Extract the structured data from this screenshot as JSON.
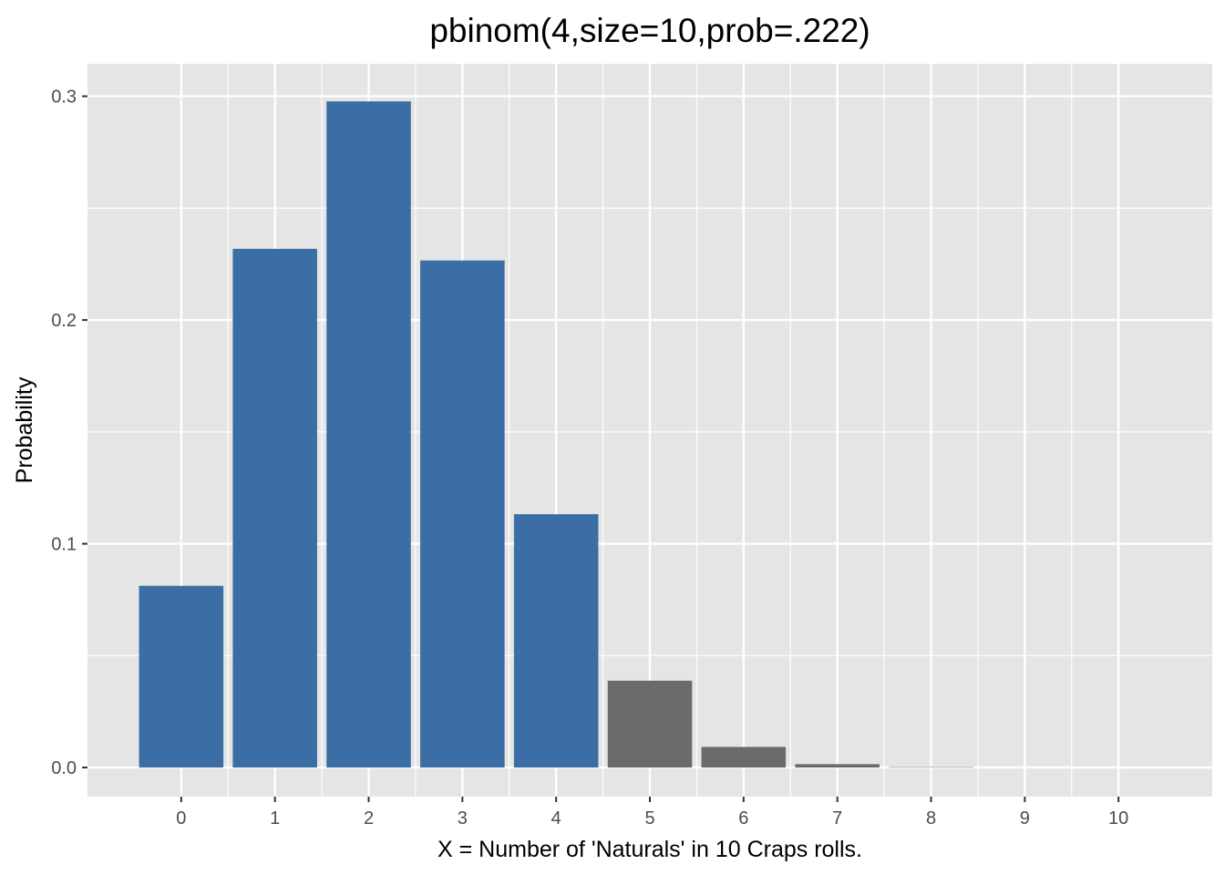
{
  "chart_data": {
    "type": "bar",
    "title": "pbinom(4,size=10,prob=.222)",
    "xlabel": "X = Number of 'Naturals' in  10  Craps rolls.",
    "ylabel": "Probability",
    "categories": [
      "0",
      "1",
      "2",
      "3",
      "4",
      "5",
      "6",
      "7",
      "8",
      "9",
      "10"
    ],
    "values": [
      0.0812,
      0.2318,
      0.2977,
      0.2266,
      0.1132,
      0.0388,
      0.0092,
      0.0015,
      0.0002,
      1e-05,
      3e-07
    ],
    "highlighted_max_x": 4,
    "colors": {
      "highlight": "#3A6EA5",
      "rest": "#6B6B6B",
      "panel": "#E5E5E5",
      "grid": "#FFFFFF"
    },
    "ylim": [
      -0.013,
      0.3145
    ],
    "yticks": [
      0.0,
      0.1,
      0.2,
      0.3
    ],
    "ytick_labels": [
      "0.0",
      "0.1",
      "0.2",
      "0.3"
    ],
    "grid": true,
    "legend": "none"
  }
}
